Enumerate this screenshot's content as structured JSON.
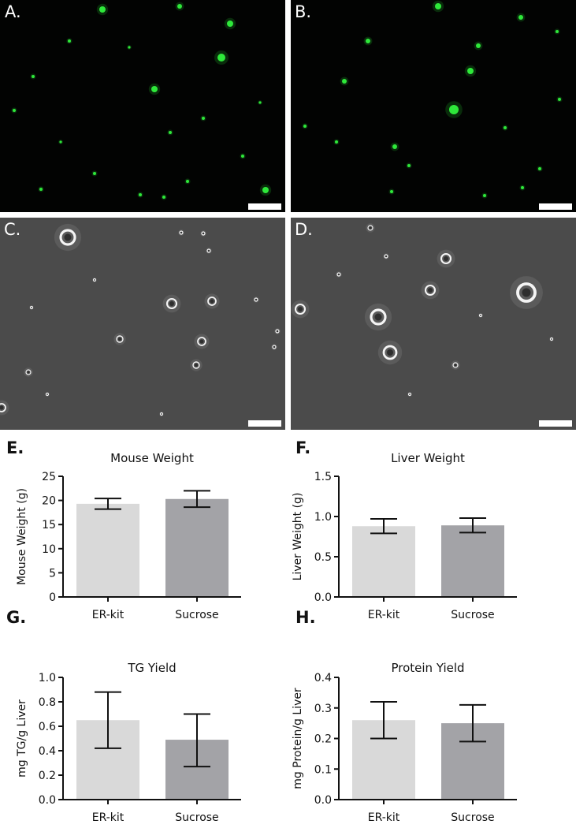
{
  "panels": {
    "a": {
      "label": "A."
    },
    "b": {
      "label": "B."
    },
    "c": {
      "label": "C."
    },
    "d": {
      "label": "D."
    },
    "e": {
      "label": "E."
    },
    "f": {
      "label": "F."
    },
    "g": {
      "label": "G."
    },
    "h": {
      "label": "H."
    }
  },
  "colors": {
    "fluorescence_bg": "#020302",
    "fluorescence_dot": "#2ee83a",
    "phase_bg": "#4b4b4b",
    "bar_er_kit": "#d9d9d9",
    "bar_sucrose": "#a3a3a7"
  },
  "chart_data": [
    {
      "id": "e",
      "type": "bar",
      "title": "Mouse Weight",
      "ylabel": "Mouse Weight (g)",
      "categories": [
        "ER-kit",
        "Sucrose"
      ],
      "values": [
        19.3,
        20.3
      ],
      "errors": [
        [
          18.2,
          20.4
        ],
        [
          18.6,
          22.0
        ]
      ],
      "ylim": [
        0,
        25
      ],
      "yticks": [
        "0",
        "5",
        "10",
        "15",
        "20",
        "25"
      ]
    },
    {
      "id": "f",
      "type": "bar",
      "title": "Liver Weight",
      "ylabel": "Liver Weight (g)",
      "categories": [
        "ER-kit",
        "Sucrose"
      ],
      "values": [
        0.88,
        0.89
      ],
      "errors": [
        [
          0.79,
          0.97
        ],
        [
          0.8,
          0.98
        ]
      ],
      "ylim": [
        0,
        1.5
      ],
      "yticks": [
        "0.0",
        "0.5",
        "1.0",
        "1.5"
      ]
    },
    {
      "id": "g",
      "type": "bar",
      "title": "TG Yield",
      "ylabel": "mg TG/g Liver",
      "categories": [
        "ER-kit",
        "Sucrose"
      ],
      "values": [
        0.65,
        0.49
      ],
      "errors": [
        [
          0.42,
          0.88
        ],
        [
          0.27,
          0.7
        ]
      ],
      "ylim": [
        0,
        1.0
      ],
      "yticks": [
        "0.0",
        "0.2",
        "0.4",
        "0.6",
        "0.8",
        "1.0"
      ]
    },
    {
      "id": "h",
      "type": "bar",
      "title": "Protein Yield",
      "ylabel": "mg Protein/g Liver",
      "categories": [
        "ER-kit",
        "Sucrose"
      ],
      "values": [
        0.26,
        0.25
      ],
      "errors": [
        [
          0.2,
          0.32
        ],
        [
          0.19,
          0.31
        ]
      ],
      "ylim": [
        0,
        0.4
      ],
      "yticks": [
        "0.0",
        "0.1",
        "0.2",
        "0.3",
        "0.4"
      ]
    }
  ]
}
